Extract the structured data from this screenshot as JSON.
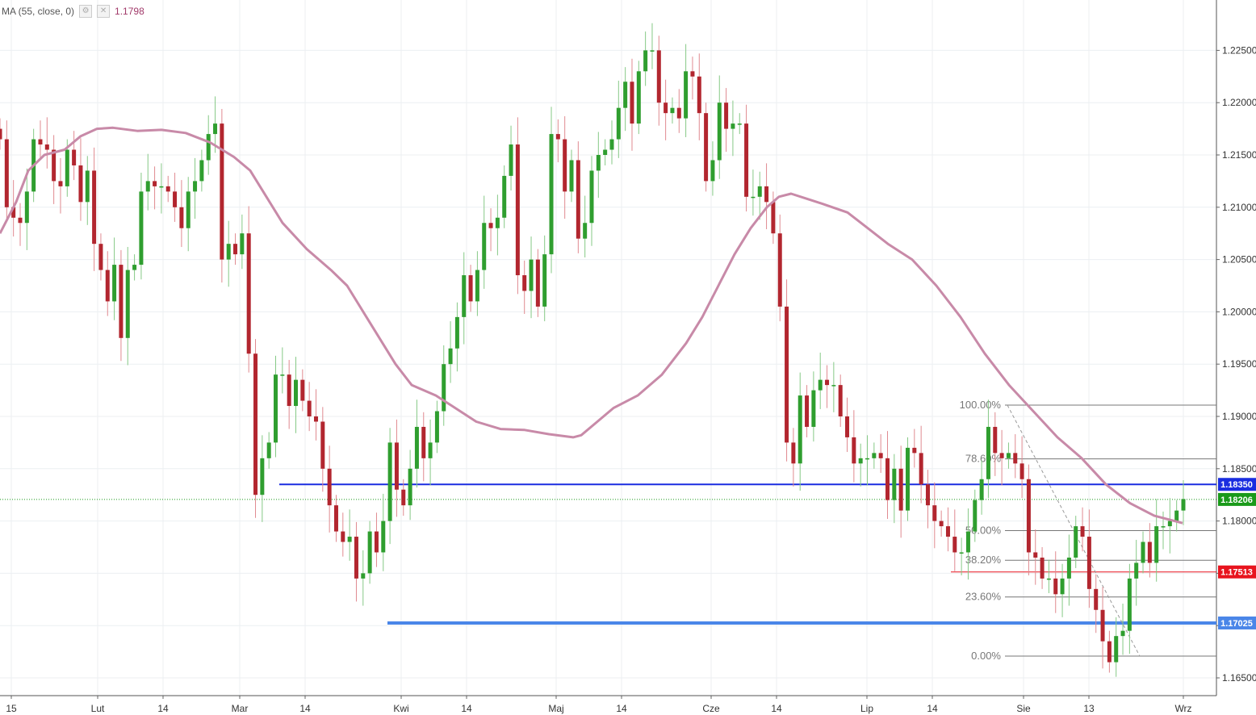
{
  "legend": {
    "label": "MA (55, close, 0)",
    "value": "1.1798",
    "settings_icon": "gear-icon",
    "close_icon": "close-icon"
  },
  "chart_data": {
    "type": "candlestick",
    "title": "",
    "x_ticks": [
      "15",
      "Lut",
      "14",
      "Mar",
      "14",
      "Kwi",
      "14",
      "Maj",
      "14",
      "Cze",
      "14",
      "Lip",
      "14",
      "Sie",
      "13",
      "Wrz"
    ],
    "y_ticks": [
      "1.16500",
      "1.17000",
      "1.17500",
      "1.18000",
      "1.18500",
      "1.19000",
      "1.19500",
      "1.20000",
      "1.20500",
      "1.21000",
      "1.21500",
      "1.22000",
      "1.22500"
    ],
    "ylim": [
      1.1635,
      1.2305
    ],
    "grid": true,
    "colors": {
      "up": "#2f9e2f",
      "down": "#b2262f",
      "ma": "#c88aa8",
      "fib": "#777777",
      "support_blue": "#1a2de0",
      "support_light": "#4a86e8",
      "red_level": "#e8141e",
      "price": "#1a9a1a"
    },
    "candles_open": [
      1.2175,
      1.2165,
      1.21,
      1.209,
      1.2085,
      1.2115,
      1.2165,
      1.216,
      1.2155,
      1.2125,
      1.212,
      1.2155,
      1.214,
      1.2105,
      1.2135,
      1.2065,
      1.204,
      1.201,
      1.2045,
      1.1975,
      1.204,
      1.2045,
      1.2115,
      1.2125,
      1.212,
      1.212,
      1.2115,
      1.21,
      1.208,
      1.2115,
      1.2125,
      1.2145,
      1.217,
      1.218,
      1.205,
      1.2065,
      1.2055,
      1.2075,
      1.196,
      1.1825,
      1.186,
      1.1875,
      1.194,
      1.194,
      1.191,
      1.1935,
      1.1915,
      1.19,
      1.1895,
      1.185,
      1.1815,
      1.179,
      1.178,
      1.1785,
      1.1745,
      1.175,
      1.179,
      1.177,
      1.18,
      1.1875,
      1.183,
      1.1815,
      1.185,
      1.189,
      1.186,
      1.1875,
      1.1905,
      1.195,
      1.1965,
      1.1995,
      1.2035,
      1.201,
      1.204,
      1.2085,
      1.208,
      1.209,
      1.213,
      1.216,
      1.2035,
      1.202,
      1.205,
      1.2005,
      1.2055,
      1.217,
      1.2165,
      1.2115,
      1.2145,
      1.207,
      1.2085,
      1.2135,
      1.215,
      1.2155,
      1.2165,
      1.2195,
      1.222,
      1.218,
      1.223,
      1.225,
      1.225,
      1.22,
      1.219,
      1.2195,
      1.2185,
      1.223,
      1.2225,
      1.219,
      1.2125,
      1.2145,
      1.22,
      1.2175,
      1.218,
      1.218,
      1.211,
      1.211,
      1.212,
      1.2105,
      1.2075,
      1.2005,
      1.1875,
      1.1855,
      1.192,
      1.189,
      1.1925,
      1.1935,
      1.193,
      1.193,
      1.19,
      1.188,
      1.1855,
      1.186,
      1.186,
      1.1865,
      1.186,
      1.182,
      1.185,
      1.181,
      1.187,
      1.1865,
      1.1835,
      1.1815,
      1.18,
      1.1795,
      1.1785,
      1.177,
      1.177,
      1.179,
      1.182,
      1.184,
      1.189,
      1.1865,
      1.186,
      1.1865,
      1.1855,
      1.184,
      1.177,
      1.1765,
      1.1745,
      1.1745,
      1.173,
      1.1745,
      1.1765,
      1.1795,
      1.1785,
      1.1735,
      1.1715,
      1.1685,
      1.1665,
      1.169,
      1.1695,
      1.1745,
      1.176,
      1.178,
      1.176,
      1.1795,
      1.1795,
      1.18,
      1.181
    ],
    "candles_close": [
      1.2165,
      1.21,
      1.209,
      1.2085,
      1.2115,
      1.2165,
      1.216,
      1.2155,
      1.2125,
      1.212,
      1.2155,
      1.214,
      1.2105,
      1.2135,
      1.2065,
      1.204,
      1.201,
      1.2045,
      1.1975,
      1.204,
      1.2045,
      1.2115,
      1.2125,
      1.212,
      1.212,
      1.2115,
      1.21,
      1.208,
      1.2115,
      1.2125,
      1.2145,
      1.217,
      1.218,
      1.205,
      1.2065,
      1.2055,
      1.2075,
      1.196,
      1.1825,
      1.186,
      1.1875,
      1.194,
      1.194,
      1.191,
      1.1935,
      1.1915,
      1.19,
      1.1895,
      1.185,
      1.1815,
      1.179,
      1.178,
      1.1785,
      1.1745,
      1.175,
      1.179,
      1.177,
      1.18,
      1.1875,
      1.183,
      1.1815,
      1.185,
      1.189,
      1.186,
      1.1875,
      1.1905,
      1.195,
      1.1965,
      1.1995,
      1.2035,
      1.201,
      1.204,
      1.2085,
      1.208,
      1.209,
      1.213,
      1.216,
      1.2035,
      1.202,
      1.205,
      1.2005,
      1.2055,
      1.217,
      1.2165,
      1.2115,
      1.2145,
      1.207,
      1.2085,
      1.2135,
      1.215,
      1.2155,
      1.2165,
      1.2195,
      1.222,
      1.218,
      1.223,
      1.225,
      1.225,
      1.22,
      1.219,
      1.2195,
      1.2185,
      1.223,
      1.2225,
      1.219,
      1.2125,
      1.2145,
      1.22,
      1.2175,
      1.218,
      1.218,
      1.211,
      1.211,
      1.212,
      1.2105,
      1.2075,
      1.2005,
      1.1875,
      1.1855,
      1.192,
      1.189,
      1.1925,
      1.1935,
      1.193,
      1.193,
      1.19,
      1.188,
      1.1855,
      1.186,
      1.186,
      1.1865,
      1.186,
      1.182,
      1.185,
      1.181,
      1.187,
      1.1865,
      1.1835,
      1.1815,
      1.18,
      1.1795,
      1.1785,
      1.177,
      1.177,
      1.179,
      1.182,
      1.184,
      1.189,
      1.1865,
      1.186,
      1.1865,
      1.1855,
      1.184,
      1.177,
      1.1765,
      1.1745,
      1.1745,
      1.173,
      1.1745,
      1.1765,
      1.1795,
      1.1785,
      1.1735,
      1.1715,
      1.1685,
      1.1665,
      1.169,
      1.1695,
      1.1745,
      1.176,
      1.178,
      1.176,
      1.1795,
      1.1795,
      1.18,
      1.181,
      1.1821
    ],
    "ma_series": [
      [
        0,
        1.2075
      ],
      [
        20,
        1.2105
      ],
      [
        35,
        1.2135
      ],
      [
        55,
        1.215
      ],
      [
        80,
        1.2155
      ],
      [
        100,
        1.2168
      ],
      [
        120,
        1.2175
      ],
      [
        140,
        1.2176
      ],
      [
        170,
        1.2173
      ],
      [
        200,
        1.2174
      ],
      [
        230,
        1.2171
      ],
      [
        260,
        1.2162
      ],
      [
        290,
        1.2148
      ],
      [
        310,
        1.2135
      ],
      [
        330,
        1.211
      ],
      [
        350,
        1.2085
      ],
      [
        380,
        1.206
      ],
      [
        410,
        1.204
      ],
      [
        430,
        1.2025
      ],
      [
        450,
        1.2
      ],
      [
        470,
        1.1975
      ],
      [
        490,
        1.195
      ],
      [
        510,
        1.193
      ],
      [
        540,
        1.192
      ],
      [
        560,
        1.191
      ],
      [
        590,
        1.1895
      ],
      [
        620,
        1.1888
      ],
      [
        650,
        1.1887
      ],
      [
        680,
        1.1883
      ],
      [
        710,
        1.188
      ],
      [
        720,
        1.1882
      ],
      [
        740,
        1.1895
      ],
      [
        760,
        1.1908
      ],
      [
        790,
        1.192
      ],
      [
        820,
        1.194
      ],
      [
        850,
        1.197
      ],
      [
        870,
        1.1995
      ],
      [
        890,
        1.2025
      ],
      [
        910,
        1.2055
      ],
      [
        930,
        1.208
      ],
      [
        950,
        1.21
      ],
      [
        965,
        1.211
      ],
      [
        980,
        1.2113
      ],
      [
        1000,
        1.2108
      ],
      [
        1020,
        1.2103
      ],
      [
        1050,
        1.2095
      ],
      [
        1075,
        1.208
      ],
      [
        1100,
        1.2065
      ],
      [
        1130,
        1.205
      ],
      [
        1160,
        1.2025
      ],
      [
        1190,
        1.1995
      ],
      [
        1220,
        1.196
      ],
      [
        1250,
        1.193
      ],
      [
        1280,
        1.1905
      ],
      [
        1310,
        1.188
      ],
      [
        1340,
        1.186
      ],
      [
        1370,
        1.1835
      ],
      [
        1400,
        1.1817
      ],
      [
        1430,
        1.1805
      ],
      [
        1465,
        1.1798
      ]
    ],
    "horizontal_levels": [
      {
        "value": 1.1835,
        "label": "1.18350",
        "x_start": 346,
        "color": "support_blue",
        "width": 2
      },
      {
        "value": 1.18206,
        "label": "1.18206",
        "x_start": 0,
        "color": "price",
        "width": 1,
        "dotted": true
      },
      {
        "value": 1.17513,
        "label": "1.17513",
        "x_start": 1178,
        "color": "red_level",
        "width": 1
      },
      {
        "value": 1.17025,
        "label": "1.17025",
        "x_start": 480,
        "color": "support_light",
        "width": 4
      }
    ],
    "fibonacci": {
      "levels": [
        {
          "label": "100.00%",
          "value": 1.19108
        },
        {
          "label": "78.60%",
          "value": 1.18594
        },
        {
          "label": "50.00%",
          "value": 1.17908
        },
        {
          "label": "38.20%",
          "value": 1.17625
        },
        {
          "label": "23.60%",
          "value": 1.17274
        },
        {
          "label": "0.00%",
          "value": 1.16708
        }
      ],
      "trend_from": [
        1248,
        1.19108
      ],
      "trend_to": [
        1412,
        1.16708
      ]
    }
  }
}
